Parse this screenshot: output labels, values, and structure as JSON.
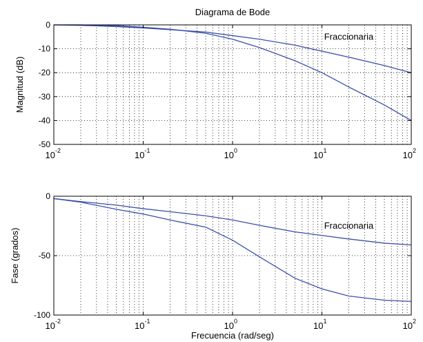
{
  "chart_data": [
    {
      "type": "line",
      "title": "Diagrama de Bode",
      "xlabel": "",
      "ylabel": "Magnitud (dB)",
      "x_scale": "log",
      "xlim": [
        0.01,
        100
      ],
      "ylim": [
        -50,
        0
      ],
      "x_ticks": [
        0.01,
        0.1,
        1,
        10,
        100
      ],
      "x_tick_labels": [
        {
          "base": "10",
          "exp": "-2"
        },
        {
          "base": "10",
          "exp": "-1"
        },
        {
          "base": "10",
          "exp": "0"
        },
        {
          "base": "10",
          "exp": "1"
        },
        {
          "base": "10",
          "exp": "2"
        }
      ],
      "y_ticks": [
        0,
        -10,
        -20,
        -30,
        -40,
        -50
      ],
      "y_tick_labels": [
        "0",
        "-10",
        "-20",
        "-30",
        "-40",
        "-50"
      ],
      "grid": true,
      "annotation": "Fraccionaria",
      "annotation_at": [
        20,
        -5
      ],
      "line_color": "#3a4fa8",
      "series": [
        {
          "x": [
            0.01,
            0.02,
            0.05,
            0.1,
            0.2,
            0.5,
            1,
            2,
            5,
            10,
            20,
            50,
            100
          ],
          "y": [
            0,
            -0.2,
            -0.7,
            -1.3,
            -2,
            -3,
            -4.5,
            -6,
            -8.5,
            -11,
            -13.5,
            -17,
            -20
          ]
        },
        {
          "x": [
            0.01,
            0.02,
            0.05,
            0.1,
            0.2,
            0.5,
            1,
            2,
            5,
            10,
            20,
            50,
            100
          ],
          "y": [
            0,
            0,
            -0.3,
            -1,
            -1.8,
            -3.5,
            -6,
            -9.5,
            -15,
            -20,
            -26,
            -33.5,
            -40
          ]
        }
      ]
    },
    {
      "type": "line",
      "title": "",
      "xlabel": "Frecuencia (rad/seg)",
      "ylabel": "Fase (grados)",
      "x_scale": "log",
      "xlim": [
        0.01,
        100
      ],
      "ylim": [
        -100,
        0
      ],
      "x_ticks": [
        0.01,
        0.1,
        1,
        10,
        100
      ],
      "x_tick_labels": [
        {
          "base": "10",
          "exp": "-2"
        },
        {
          "base": "10",
          "exp": "-1"
        },
        {
          "base": "10",
          "exp": "0"
        },
        {
          "base": "10",
          "exp": "1"
        },
        {
          "base": "10",
          "exp": "2"
        }
      ],
      "y_ticks": [
        0,
        -50,
        -100
      ],
      "y_tick_labels": [
        "0",
        "-50",
        "-100"
      ],
      "grid": true,
      "annotation": "Fraccionaria",
      "annotation_at": [
        20,
        -25
      ],
      "line_color": "#3a4fa8",
      "series": [
        {
          "x": [
            0.01,
            0.02,
            0.05,
            0.1,
            0.2,
            0.5,
            1,
            2,
            5,
            10,
            20,
            50,
            100
          ],
          "y": [
            -2,
            -4.5,
            -7.5,
            -10.5,
            -13,
            -16.5,
            -20,
            -24.5,
            -30,
            -33,
            -36,
            -39.5,
            -41
          ]
        },
        {
          "x": [
            0.01,
            0.02,
            0.05,
            0.1,
            0.2,
            0.5,
            1,
            2,
            5,
            10,
            20,
            50,
            100
          ],
          "y": [
            -2,
            -5,
            -11,
            -15,
            -20,
            -26,
            -37,
            -51,
            -69,
            -78,
            -84,
            -87.5,
            -88.5
          ]
        }
      ]
    }
  ]
}
